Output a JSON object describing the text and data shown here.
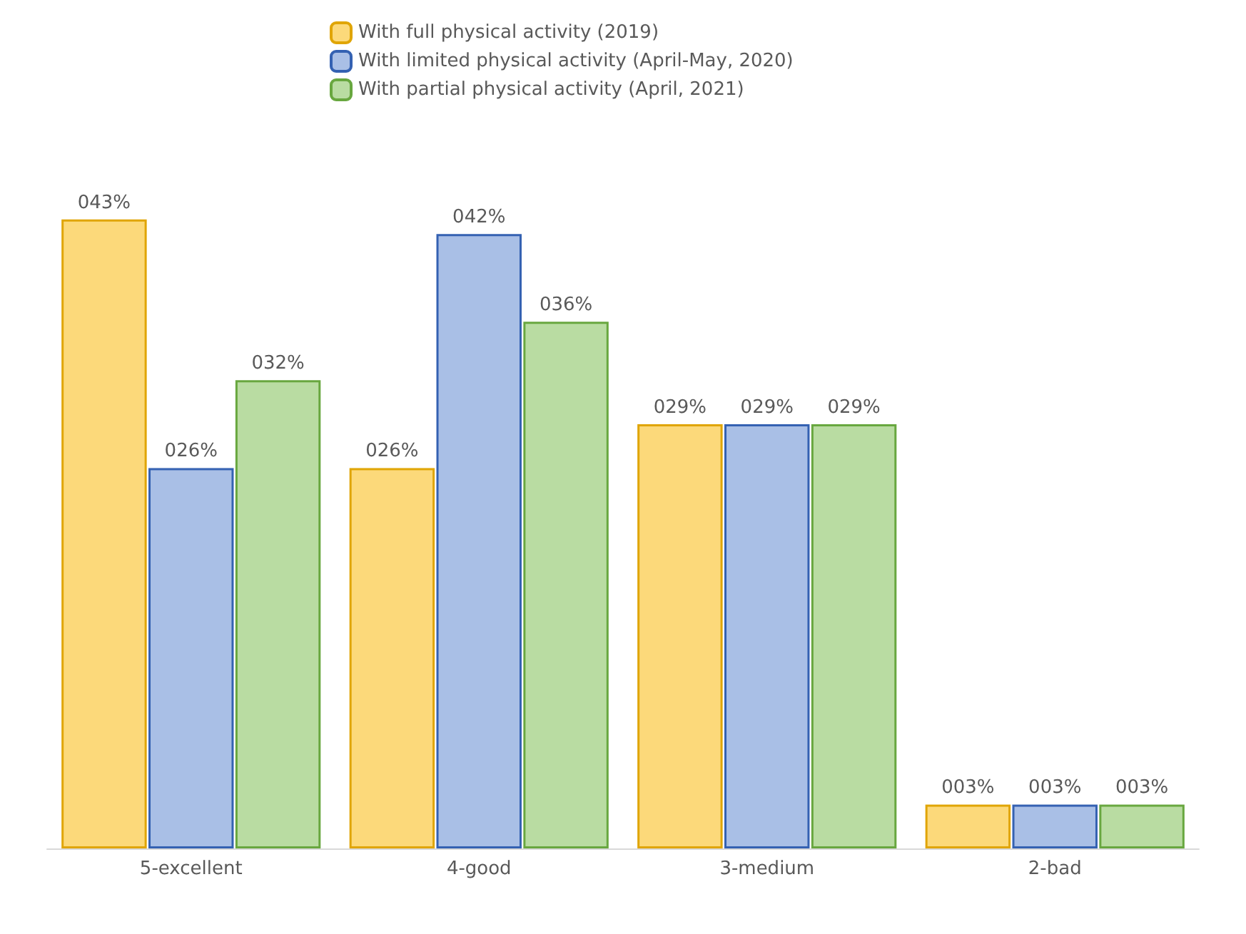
{
  "chart_data": {
    "type": "bar",
    "categories": [
      "5-excellent",
      "4-good",
      "3-medium",
      "2-bad"
    ],
    "series": [
      {
        "name": "With full physical activity (2019)",
        "color": "#fcd97a",
        "values": [
          43,
          26,
          29,
          3
        ],
        "value_labels": [
          "043%",
          "026%",
          "029%",
          "003%"
        ]
      },
      {
        "name": "With limited physical activity (April-May, 2020)",
        "color": "#a9bfe6",
        "values": [
          26,
          42,
          29,
          3
        ],
        "value_labels": [
          "026%",
          "042%",
          "029%",
          "003%"
        ]
      },
      {
        "name": "With partial physical activity (April, 2021)",
        "color": "#b9dca2",
        "values": [
          32,
          36,
          29,
          3
        ],
        "value_labels": [
          "032%",
          "036%",
          "029%",
          "003%"
        ]
      }
    ],
    "legend": "top"
  }
}
